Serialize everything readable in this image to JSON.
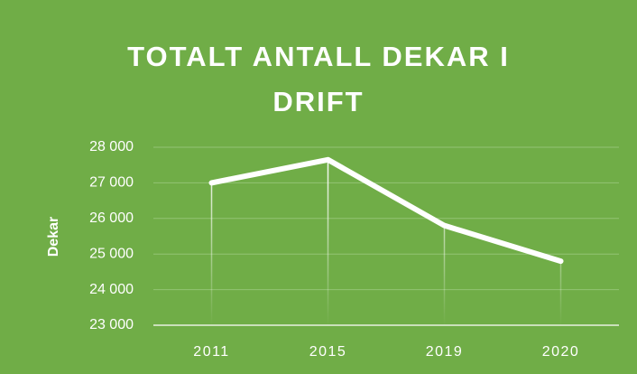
{
  "chart_data": {
    "type": "line",
    "title": "TOTALT ANTALL DEKAR I DRIFT",
    "y_label": "Dekar",
    "categories": [
      "2011",
      "2015",
      "2019",
      "2020"
    ],
    "values": [
      27000,
      27650,
      25800,
      24800
    ],
    "color": "#ffffff",
    "ylim": [
      23000,
      28000
    ],
    "yticks": [
      {
        "value": 23000,
        "label": "23 000"
      },
      {
        "value": 24000,
        "label": "24 000"
      },
      {
        "value": 25000,
        "label": "25 000"
      },
      {
        "value": 26000,
        "label": "26 000"
      },
      {
        "value": 27000,
        "label": "27 000"
      },
      {
        "value": 28000,
        "label": "28 000"
      }
    ],
    "grid": true,
    "drop_lines": true
  }
}
